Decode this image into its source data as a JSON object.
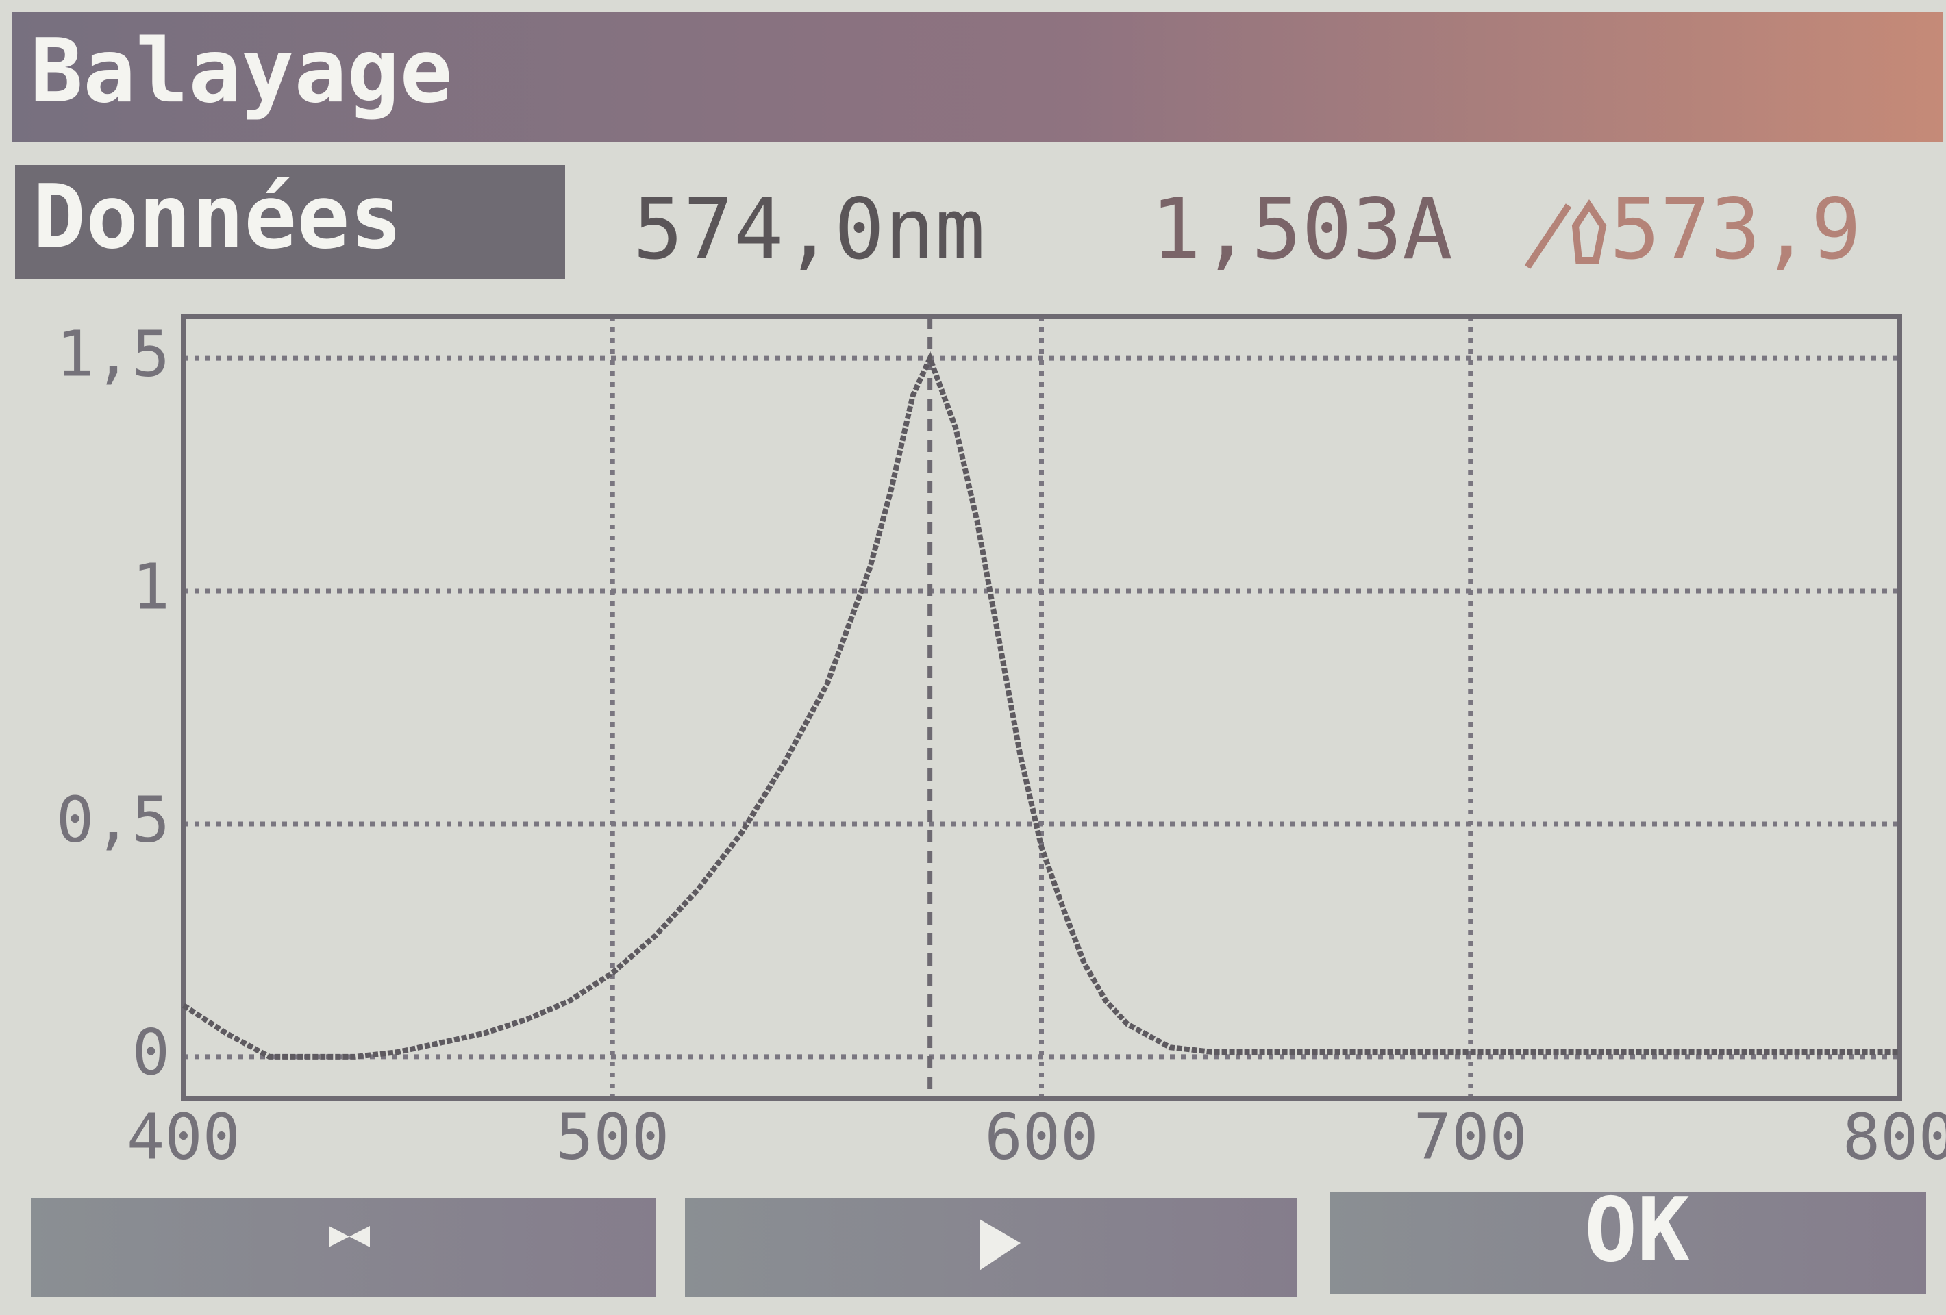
{
  "header": {
    "title": "Balayage"
  },
  "readout": {
    "tab": "Données",
    "wavelength": "574,0nm",
    "absorbance": "1,503A",
    "peak": "573,9"
  },
  "chart_data": {
    "type": "line",
    "x": [
      400,
      410,
      420,
      440,
      450,
      460,
      470,
      480,
      490,
      500,
      510,
      520,
      530,
      540,
      550,
      560,
      565,
      570,
      574,
      580,
      585,
      590,
      595,
      600,
      605,
      610,
      615,
      620,
      630,
      640,
      650,
      700,
      750,
      800
    ],
    "series": [
      {
        "color": "#5e5a60",
        "values": [
          0.11,
          0.05,
          0,
          0,
          0.01,
          0.03,
          0.05,
          0.08,
          0.12,
          0.18,
          0.26,
          0.36,
          0.48,
          0.63,
          0.8,
          1.05,
          1.22,
          1.42,
          1.5,
          1.35,
          1.15,
          0.9,
          0.65,
          0.45,
          0.32,
          0.2,
          0.12,
          0.07,
          0.02,
          0.01,
          0.01,
          0.01,
          0.01,
          0.01
        ]
      }
    ],
    "xlim": [
      400,
      800
    ],
    "xticks": [
      400,
      500,
      600,
      700,
      800
    ],
    "ylim": [
      -0.09,
      1.59
    ],
    "yticks": [
      0,
      {
        "value": 0.5,
        "label": "0,5"
      },
      1,
      {
        "value": 1.5,
        "label": "1,5"
      }
    ],
    "grid": true,
    "cursor_x": 574
  },
  "buttons": {
    "ok": "OK"
  }
}
